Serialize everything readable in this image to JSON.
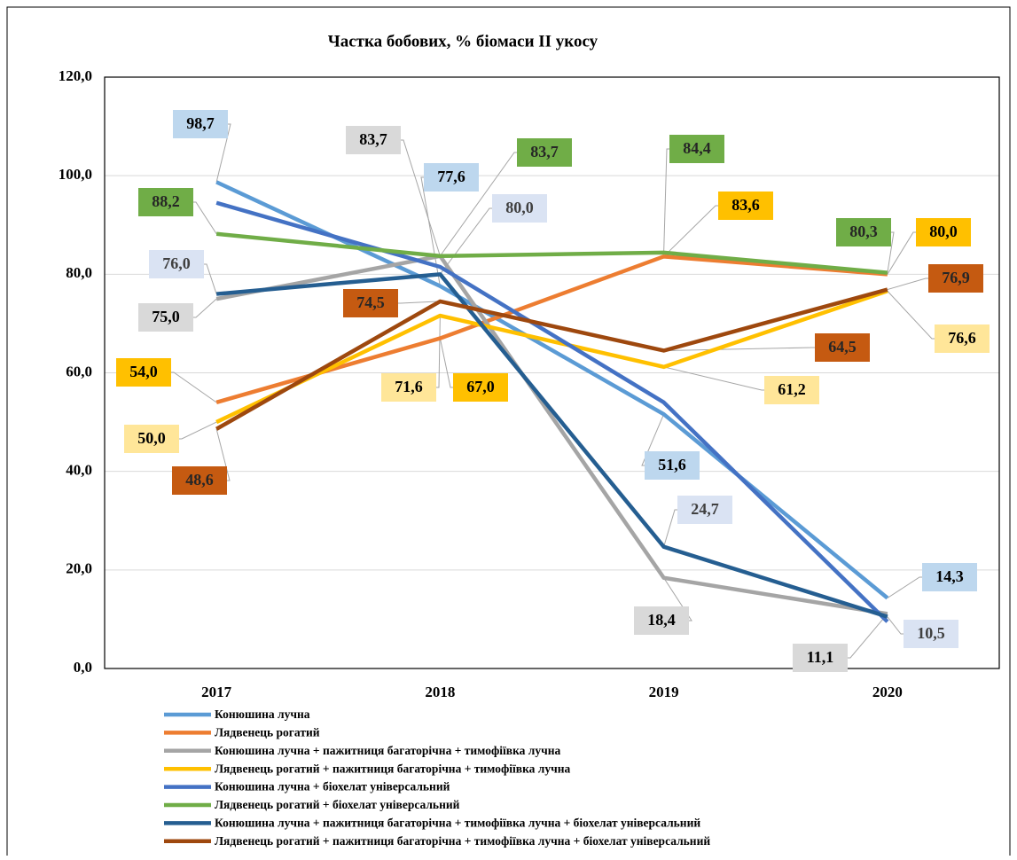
{
  "chart_data": {
    "type": "line",
    "title": "Частка бобових, % біомаси  ІІ укосу",
    "categories": [
      "2017",
      "2018",
      "2019",
      "2020"
    ],
    "ylim": [
      0,
      120
    ],
    "yticks": [
      {
        "value": 0,
        "label": "0,0"
      },
      {
        "value": 20,
        "label": "20,0"
      },
      {
        "value": 40,
        "label": "40,0"
      },
      {
        "value": 60,
        "label": "60,0"
      },
      {
        "value": 80,
        "label": "80,0"
      },
      {
        "value": 100,
        "label": "100,0"
      },
      {
        "value": 120,
        "label": "120,0"
      }
    ],
    "grid": true,
    "legend": "bottom",
    "series": [
      {
        "name": "Конюшина лучна",
        "color": "#5b9bd5",
        "label_color": "#bdd7ee",
        "values": [
          98.7,
          77.6,
          51.6,
          14.3
        ],
        "value_labels": [
          "98,7",
          "77,6",
          "51,6",
          "14,3"
        ]
      },
      {
        "name": "Лядвенець рогатий",
        "color": "#ed7d31",
        "label_color": "#ffc000",
        "values": [
          54.0,
          67.0,
          83.6,
          80.0
        ],
        "value_labels": [
          "54,0",
          "67,0",
          "83,6",
          "80,0"
        ]
      },
      {
        "name": "Конюшина лучна + пажитниця багаторічна + тимофіївка лучна",
        "color": "#a5a5a5",
        "label_color": "#d9d9d9",
        "values": [
          75.0,
          83.7,
          18.4,
          11.1
        ],
        "value_labels": [
          "75,0",
          "83,7",
          "18,4",
          "11,1"
        ]
      },
      {
        "name": "Лядвенець рогатий + пажитниця багаторічна + тимофіївка лучна",
        "color": "#ffc000",
        "label_color": "#ffe699",
        "values": [
          50.0,
          71.6,
          61.2,
          76.6
        ],
        "value_labels": [
          "50,0",
          "71,6",
          "61,2",
          "76,6"
        ]
      },
      {
        "name": "Конюшина лучна + біохелат універсальний",
        "color": "#4472c4",
        "values": [
          94.5,
          81.5,
          54.0,
          9.5
        ]
      },
      {
        "name": "Лядвенець рогатий + біохелат універсальний",
        "color": "#70ad47",
        "label_color": "#70ad47",
        "values": [
          88.2,
          83.7,
          84.4,
          80.3
        ],
        "value_labels": [
          "88,2",
          "83,7",
          "84,4",
          "80,3"
        ]
      },
      {
        "name": "Конюшина лучна + пажитниця багаторічна + тимофіївка лучна + біохелат універсальний",
        "color": "#255e91",
        "label_color": "#dae3f3",
        "values": [
          76.0,
          80.0,
          24.7,
          10.5
        ],
        "value_labels": [
          "76,0",
          "80,0",
          "24,7",
          "10,5"
        ]
      },
      {
        "name": "Лядвенець рогатий + пажитниця багаторічна + тимофіївка лучна + біохелат універсальний",
        "color": "#9e480e",
        "label_color": "#c55a11",
        "values": [
          48.6,
          74.5,
          64.5,
          76.9
        ],
        "value_labels": [
          "48,6",
          "74,5",
          "64,5",
          "76,9"
        ]
      }
    ]
  }
}
